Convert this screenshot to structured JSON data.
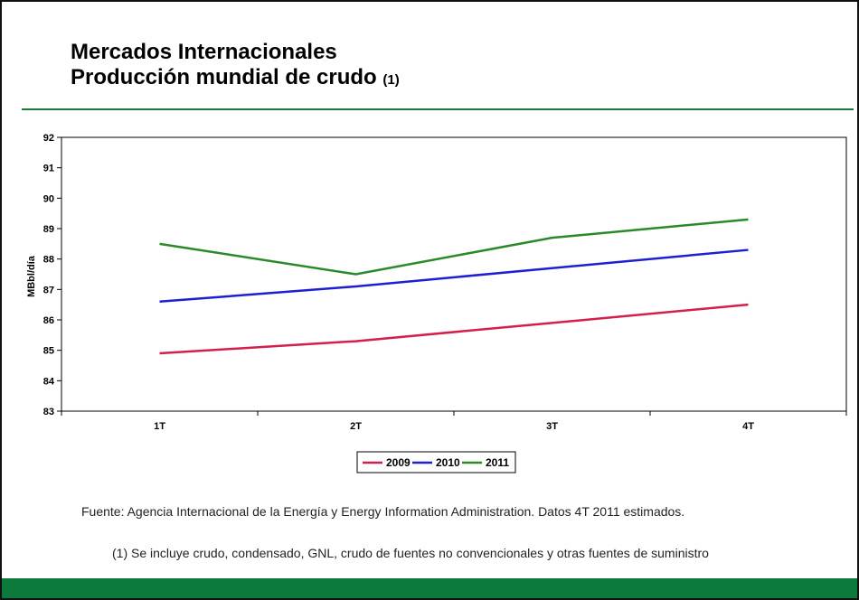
{
  "slide": {
    "title": "Mercados Internacionales",
    "subtitle": "Producción mundial de crudo",
    "subtitle_note": "(1)",
    "source": "Fuente: Agencia Internacional de la Energía y Energy Information Administration. Datos 4T 2011 estimados.",
    "footnote": "(1) Se incluye crudo, condensado, GNL, crudo de fuentes no convencionales y otras fuentes de suministro"
  },
  "chart_data": {
    "type": "line",
    "ylabel": "MBbl/día",
    "categories": [
      "1T",
      "2T",
      "3T",
      "4T"
    ],
    "series": [
      {
        "name": "2009",
        "color": "#d21f4b",
        "values": [
          84.9,
          85.3,
          85.9,
          86.5
        ]
      },
      {
        "name": "2010",
        "color": "#1f1fd2",
        "values": [
          86.6,
          87.1,
          87.7,
          88.3
        ]
      },
      {
        "name": "2011",
        "color": "#2a8a2a",
        "values": [
          88.5,
          87.5,
          88.7,
          89.3
        ]
      }
    ],
    "ylim": [
      83,
      92
    ],
    "yticks": [
      83,
      84,
      85,
      86,
      87,
      88,
      89,
      90,
      91,
      92
    ],
    "legend": "bottom"
  }
}
